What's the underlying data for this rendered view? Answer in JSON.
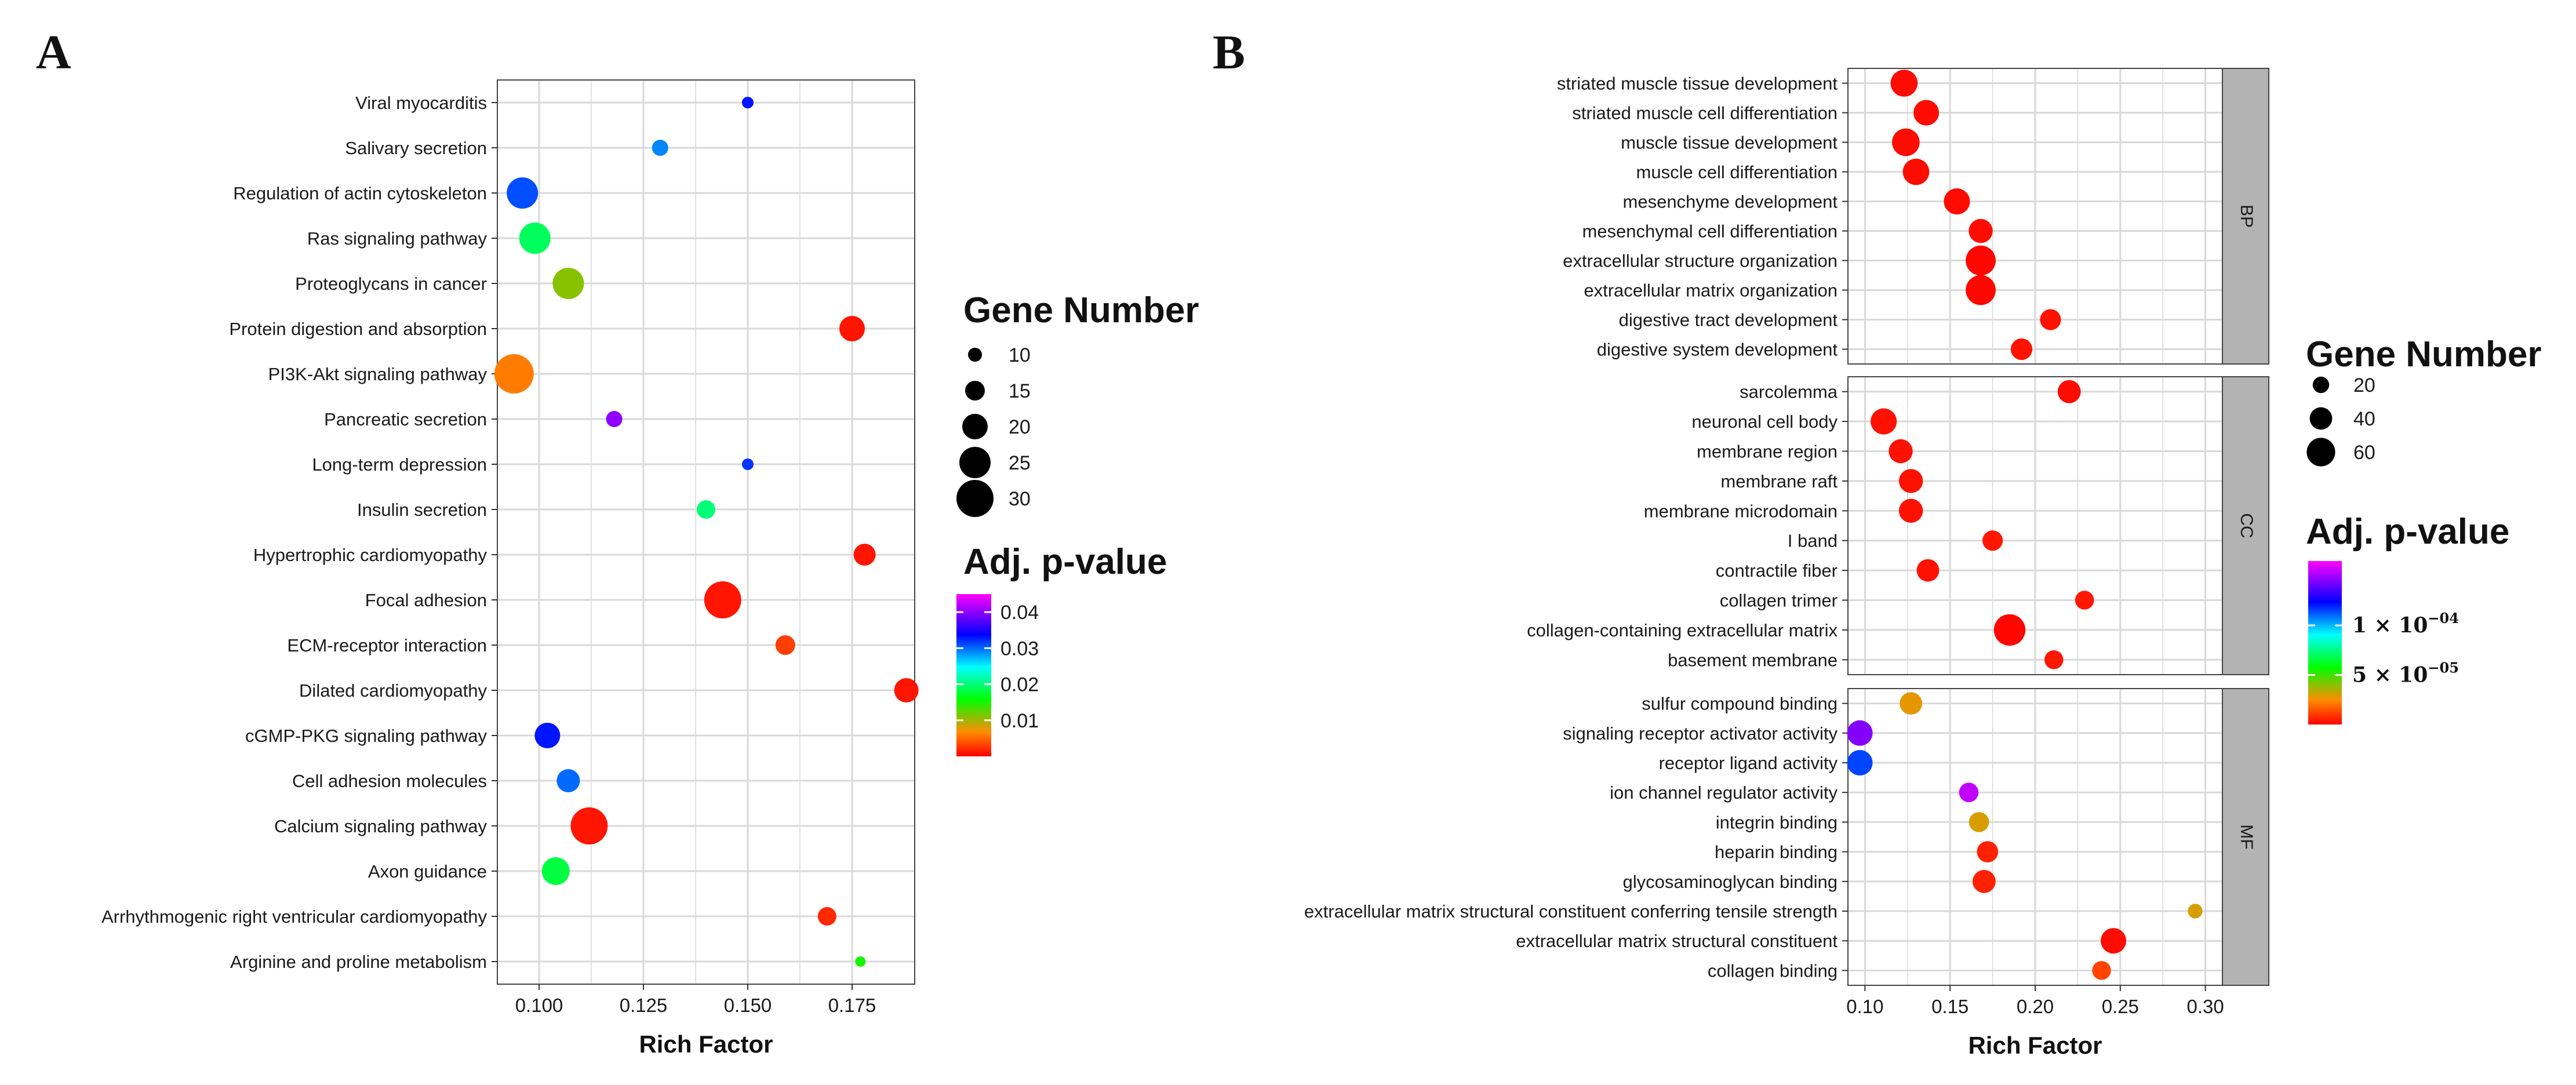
{
  "colors": {
    "grid": "#d9d9d9",
    "panel_border": "#444444",
    "strip_fill": "#b3b3b3",
    "scale_low_to_high": [
      "#ff0000",
      "#ff8c00",
      "#00ff00",
      "#00ffff",
      "#0000ff",
      "#ff00ff"
    ]
  },
  "chart_data": [
    {
      "panel": "A",
      "type": "scatter",
      "xlabel": "Rich Factor",
      "ylabel": "",
      "xlim": [
        0.09,
        0.19
      ],
      "xticks": [
        0.1,
        0.125,
        0.15,
        0.175
      ],
      "xtick_labels": [
        "0.100",
        "0.125",
        "0.150",
        "0.175"
      ],
      "categories": [
        "Viral myocarditis",
        "Salivary secretion",
        "Regulation of actin cytoskeleton",
        "Ras signaling pathway",
        "Proteoglycans in cancer",
        "Protein digestion and absorption",
        "PI3K-Akt signaling pathway",
        "Pancreatic secretion",
        "Long-term depression",
        "Insulin secretion",
        "Hypertrophic cardiomyopathy",
        "Focal adhesion",
        "ECM-receptor interaction",
        "Dilated cardiomyopathy",
        "cGMP-PKG signaling pathway",
        "Cell adhesion molecules",
        "Calcium signaling pathway",
        "Axon guidance",
        "Arrhythmogenic right ventricular cardiomyopathy",
        "Arginine and proline metabolism"
      ],
      "points": [
        {
          "term": "Viral myocarditis",
          "rich_factor": 0.15,
          "gene_number": 8,
          "adj_p": 0.033
        },
        {
          "term": "Salivary secretion",
          "rich_factor": 0.129,
          "gene_number": 12,
          "adj_p": 0.029
        },
        {
          "term": "Regulation of actin cytoskeleton",
          "rich_factor": 0.096,
          "gene_number": 25,
          "adj_p": 0.031
        },
        {
          "term": "Ras signaling pathway",
          "rich_factor": 0.099,
          "gene_number": 25,
          "adj_p": 0.019
        },
        {
          "term": "Proteoglycans in cancer",
          "rich_factor": 0.107,
          "gene_number": 25,
          "adj_p": 0.011
        },
        {
          "term": "Protein digestion and absorption",
          "rich_factor": 0.175,
          "gene_number": 20,
          "adj_p": 0.001
        },
        {
          "term": "PI3K-Akt signaling pathway",
          "rich_factor": 0.094,
          "gene_number": 32,
          "adj_p": 0.006
        },
        {
          "term": "Pancreatic secretion",
          "rich_factor": 0.118,
          "gene_number": 12,
          "adj_p": 0.04
        },
        {
          "term": "Long-term depression",
          "rich_factor": 0.15,
          "gene_number": 8,
          "adj_p": 0.032
        },
        {
          "term": "Insulin secretion",
          "rich_factor": 0.14,
          "gene_number": 14,
          "adj_p": 0.02
        },
        {
          "term": "Hypertrophic cardiomyopathy",
          "rich_factor": 0.178,
          "gene_number": 17,
          "adj_p": 0.001
        },
        {
          "term": "Focal adhesion",
          "rich_factor": 0.144,
          "gene_number": 30,
          "adj_p": 0.001
        },
        {
          "term": "ECM-receptor interaction",
          "rich_factor": 0.159,
          "gene_number": 15,
          "adj_p": 0.003
        },
        {
          "term": "Dilated cardiomyopathy",
          "rich_factor": 0.188,
          "gene_number": 19,
          "adj_p": 0.001
        },
        {
          "term": "cGMP-PKG signaling pathway",
          "rich_factor": 0.102,
          "gene_number": 20,
          "adj_p": 0.033
        },
        {
          "term": "Cell adhesion molecules",
          "rich_factor": 0.107,
          "gene_number": 18,
          "adj_p": 0.03
        },
        {
          "term": "Calcium signaling pathway",
          "rich_factor": 0.112,
          "gene_number": 30,
          "adj_p": 0.001
        },
        {
          "term": "Axon guidance",
          "rich_factor": 0.104,
          "gene_number": 22,
          "adj_p": 0.018
        },
        {
          "term": "Arrhythmogenic right ventricular cardiomyopathy",
          "rich_factor": 0.169,
          "gene_number": 14,
          "adj_p": 0.002
        },
        {
          "term": "Arginine and proline metabolism",
          "rich_factor": 0.177,
          "gene_number": 7,
          "adj_p": 0.015
        }
      ],
      "legend_size": {
        "title": "Gene Number",
        "values": [
          10,
          15,
          20,
          25,
          30
        ],
        "labels": [
          "10",
          "15",
          "20",
          "25",
          "30"
        ]
      },
      "legend_color": {
        "title": "Adj. p-value",
        "range": [
          0,
          0.045
        ],
        "ticks": [
          0.04,
          0.03,
          0.02,
          0.01
        ],
        "labels": [
          "0.04",
          "0.03",
          "0.02",
          "0.01"
        ]
      }
    },
    {
      "panel": "B",
      "type": "scatter",
      "xlabel": "Rich Factor",
      "ylabel": "",
      "xlim": [
        0.09,
        0.31
      ],
      "xticks": [
        0.1,
        0.15,
        0.2,
        0.25,
        0.3
      ],
      "xtick_labels": [
        "0.10",
        "0.15",
        "0.20",
        "0.25",
        "0.30"
      ],
      "facets": [
        {
          "label": "BP",
          "points": [
            {
              "term": "striated muscle tissue development",
              "rich_factor": 0.123,
              "gene_number": 55,
              "adj_p": 2e-06
            },
            {
              "term": "striated muscle cell differentiation",
              "rich_factor": 0.136,
              "gene_number": 50,
              "adj_p": 2e-06
            },
            {
              "term": "muscle tissue development",
              "rich_factor": 0.124,
              "gene_number": 57,
              "adj_p": 2e-06
            },
            {
              "term": "muscle cell differentiation",
              "rich_factor": 0.13,
              "gene_number": 53,
              "adj_p": 2e-06
            },
            {
              "term": "mesenchyme development",
              "rich_factor": 0.154,
              "gene_number": 52,
              "adj_p": 2e-06
            },
            {
              "term": "mesenchymal cell differentiation",
              "rich_factor": 0.168,
              "gene_number": 45,
              "adj_p": 2e-06
            },
            {
              "term": "extracellular structure organization",
              "rich_factor": 0.168,
              "gene_number": 65,
              "adj_p": 1e-06
            },
            {
              "term": "extracellular matrix organization",
              "rich_factor": 0.168,
              "gene_number": 65,
              "adj_p": 1e-06
            },
            {
              "term": "digestive tract development",
              "rich_factor": 0.209,
              "gene_number": 35,
              "adj_p": 3e-06
            },
            {
              "term": "digestive system development",
              "rich_factor": 0.192,
              "gene_number": 37,
              "adj_p": 3e-06
            }
          ]
        },
        {
          "label": "CC",
          "points": [
            {
              "term": "sarcolemma",
              "rich_factor": 0.22,
              "gene_number": 42,
              "adj_p": 2e-06
            },
            {
              "term": "neuronal cell body",
              "rich_factor": 0.111,
              "gene_number": 52,
              "adj_p": 3e-06
            },
            {
              "term": "membrane region",
              "rich_factor": 0.121,
              "gene_number": 45,
              "adj_p": 3e-06
            },
            {
              "term": "membrane raft",
              "rich_factor": 0.127,
              "gene_number": 45,
              "adj_p": 3e-06
            },
            {
              "term": "membrane microdomain",
              "rich_factor": 0.127,
              "gene_number": 45,
              "adj_p": 3e-06
            },
            {
              "term": "I band",
              "rich_factor": 0.175,
              "gene_number": 33,
              "adj_p": 4e-06
            },
            {
              "term": "contractile fiber",
              "rich_factor": 0.137,
              "gene_number": 40,
              "adj_p": 3e-06
            },
            {
              "term": "collagen trimer",
              "rich_factor": 0.229,
              "gene_number": 28,
              "adj_p": 4e-06
            },
            {
              "term": "collagen-containing extracellular matrix",
              "rich_factor": 0.185,
              "gene_number": 70,
              "adj_p": 1e-06
            },
            {
              "term": "basement membrane",
              "rich_factor": 0.211,
              "gene_number": 28,
              "adj_p": 4e-06
            }
          ]
        },
        {
          "label": "MF",
          "points": [
            {
              "term": "sulfur compound binding",
              "rich_factor": 0.127,
              "gene_number": 40,
              "adj_p": 2.8e-05
            },
            {
              "term": "signaling receptor activator activity",
              "rich_factor": 0.097,
              "gene_number": 50,
              "adj_p": 0.000145
            },
            {
              "term": "receptor ligand activity",
              "rich_factor": 0.097,
              "gene_number": 50,
              "adj_p": 0.000115
            },
            {
              "term": "ion channel regulator activity",
              "rich_factor": 0.161,
              "gene_number": 30,
              "adj_p": 0.000155
            },
            {
              "term": "integrin binding",
              "rich_factor": 0.167,
              "gene_number": 32,
              "adj_p": 3e-05
            },
            {
              "term": "heparin binding",
              "rich_factor": 0.172,
              "gene_number": 36,
              "adj_p": 6e-06
            },
            {
              "term": "glycosaminoglycan binding",
              "rich_factor": 0.17,
              "gene_number": 42,
              "adj_p": 6e-06
            },
            {
              "term": "extracellular matrix structural constituent conferring tensile strength",
              "rich_factor": 0.294,
              "gene_number": 14,
              "adj_p": 3e-05
            },
            {
              "term": "extracellular matrix structural constituent",
              "rich_factor": 0.246,
              "gene_number": 50,
              "adj_p": 2e-06
            },
            {
              "term": "collagen binding",
              "rich_factor": 0.239,
              "gene_number": 28,
              "adj_p": 1.2e-05
            }
          ]
        }
      ],
      "legend_size": {
        "title": "Gene Number",
        "values": [
          20,
          40,
          60
        ],
        "labels": [
          "20",
          "40",
          "60"
        ]
      },
      "legend_color": {
        "title": "Adj. p-value",
        "range": [
          0,
          0.000165
        ],
        "ticks": [
          0.0001,
          5e-05
        ],
        "labels": [
          [
            "1 × 10",
            "−04"
          ],
          [
            "5 × 10",
            "−05"
          ]
        ]
      }
    }
  ]
}
